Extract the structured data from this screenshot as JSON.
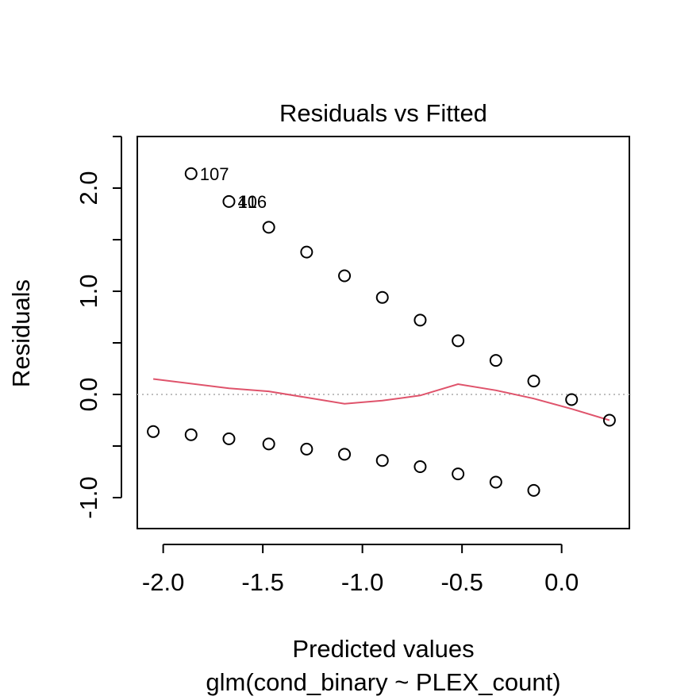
{
  "chart_data": {
    "type": "scatter",
    "title": "Residuals vs Fitted",
    "xlabel": "Predicted values",
    "xlabel_sub": "glm(cond_binary ~ PLEX_count)",
    "ylabel": "Residuals",
    "xlim": [
      -2.13,
      0.34
    ],
    "ylim": [
      -1.3,
      2.5
    ],
    "xticks": [
      {
        "value": -2.0,
        "label": "-2.0"
      },
      {
        "value": -1.5,
        "label": "-1.5"
      },
      {
        "value": -1.0,
        "label": "-1.0"
      },
      {
        "value": -0.5,
        "label": "-0.5"
      },
      {
        "value": 0.0,
        "label": "0.0"
      }
    ],
    "yticks": [
      {
        "value": -1.0,
        "label": "-1.0",
        "labeled": true
      },
      {
        "value": -0.5,
        "label": "",
        "labeled": false
      },
      {
        "value": 0.0,
        "label": "0.0",
        "labeled": true
      },
      {
        "value": 0.5,
        "label": "",
        "labeled": false
      },
      {
        "value": 1.0,
        "label": "1.0",
        "labeled": true
      },
      {
        "value": 1.5,
        "label": "",
        "labeled": false
      },
      {
        "value": 2.0,
        "label": "2.0",
        "labeled": true
      },
      {
        "value": 2.5,
        "label": "",
        "labeled": false
      }
    ],
    "reference_line": {
      "y": 0,
      "style": "dotted",
      "color": "#bebebe"
    },
    "points": [
      {
        "x": -1.86,
        "y": 2.14
      },
      {
        "x": -1.67,
        "y": 1.87
      },
      {
        "x": -1.47,
        "y": 1.62
      },
      {
        "x": -1.28,
        "y": 1.38
      },
      {
        "x": -1.09,
        "y": 1.15
      },
      {
        "x": -0.9,
        "y": 0.94
      },
      {
        "x": -0.71,
        "y": 0.72
      },
      {
        "x": -0.52,
        "y": 0.52
      },
      {
        "x": -0.33,
        "y": 0.33
      },
      {
        "x": -0.14,
        "y": 0.13
      },
      {
        "x": 0.05,
        "y": -0.05
      },
      {
        "x": 0.24,
        "y": -0.25
      },
      {
        "x": -2.05,
        "y": -0.36
      },
      {
        "x": -1.86,
        "y": -0.39
      },
      {
        "x": -1.67,
        "y": -0.43
      },
      {
        "x": -1.47,
        "y": -0.48
      },
      {
        "x": -1.28,
        "y": -0.53
      },
      {
        "x": -1.09,
        "y": -0.58
      },
      {
        "x": -0.9,
        "y": -0.64
      },
      {
        "x": -0.71,
        "y": -0.7
      },
      {
        "x": -0.52,
        "y": -0.77
      },
      {
        "x": -0.33,
        "y": -0.85
      },
      {
        "x": -0.14,
        "y": -0.93
      }
    ],
    "point_labels": [
      {
        "x": -1.86,
        "y": 2.14,
        "text": "107"
      },
      {
        "x": -1.67,
        "y": 1.87,
        "text": "106"
      },
      {
        "x": -1.67,
        "y": 1.87,
        "text": "41"
      }
    ],
    "smooth_line": {
      "color": "#df536b",
      "points": [
        {
          "x": -2.05,
          "y": 0.15
        },
        {
          "x": -1.67,
          "y": 0.06
        },
        {
          "x": -1.47,
          "y": 0.03
        },
        {
          "x": -1.28,
          "y": -0.03
        },
        {
          "x": -1.09,
          "y": -0.09
        },
        {
          "x": -0.9,
          "y": -0.06
        },
        {
          "x": -0.71,
          "y": -0.01
        },
        {
          "x": -0.52,
          "y": 0.1
        },
        {
          "x": -0.33,
          "y": 0.04
        },
        {
          "x": -0.14,
          "y": -0.04
        },
        {
          "x": 0.05,
          "y": -0.14
        },
        {
          "x": 0.24,
          "y": -0.25
        }
      ]
    },
    "grid": false,
    "legend": "none"
  }
}
